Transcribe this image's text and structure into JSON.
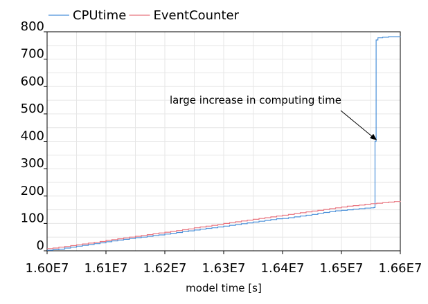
{
  "chart_data": {
    "type": "line",
    "title": "",
    "xlabel": "model time [s]",
    "ylabel": "",
    "xlim": [
      16000000,
      16600000
    ],
    "ylim": [
      0,
      800
    ],
    "x_ticks": [
      {
        "value": 16000000,
        "label": "1.60E7"
      },
      {
        "value": 16100000,
        "label": "1.61E7"
      },
      {
        "value": 16200000,
        "label": "1.62E7"
      },
      {
        "value": 16300000,
        "label": "1.63E7"
      },
      {
        "value": 16400000,
        "label": "1.64E7"
      },
      {
        "value": 16500000,
        "label": "1.65E7"
      },
      {
        "value": 16600000,
        "label": "1.66E7"
      }
    ],
    "y_ticks": [
      {
        "value": 0,
        "label": "0"
      },
      {
        "value": 100,
        "label": "100"
      },
      {
        "value": 200,
        "label": "200"
      },
      {
        "value": 300,
        "label": "300"
      },
      {
        "value": 400,
        "label": "400"
      },
      {
        "value": 500,
        "label": "500"
      },
      {
        "value": 600,
        "label": "600"
      },
      {
        "value": 700,
        "label": "700"
      },
      {
        "value": 800,
        "label": "800"
      }
    ],
    "grid": true,
    "legend_position": "top-left, above plot",
    "series": [
      {
        "name": "CPUtime",
        "color": "#4a90d9",
        "points": [
          [
            16000000,
            2
          ],
          [
            16010000,
            4
          ],
          [
            16020000,
            6
          ],
          [
            16030000,
            10
          ],
          [
            16040000,
            13
          ],
          [
            16050000,
            17
          ],
          [
            16060000,
            20
          ],
          [
            16070000,
            23
          ],
          [
            16080000,
            26
          ],
          [
            16090000,
            29
          ],
          [
            16100000,
            33
          ],
          [
            16110000,
            36
          ],
          [
            16120000,
            39
          ],
          [
            16130000,
            42
          ],
          [
            16140000,
            45
          ],
          [
            16150000,
            48
          ],
          [
            16160000,
            50
          ],
          [
            16170000,
            53
          ],
          [
            16180000,
            56
          ],
          [
            16190000,
            58
          ],
          [
            16200000,
            61
          ],
          [
            16210000,
            64
          ],
          [
            16220000,
            67
          ],
          [
            16230000,
            70
          ],
          [
            16240000,
            73
          ],
          [
            16250000,
            76
          ],
          [
            16260000,
            79
          ],
          [
            16270000,
            82
          ],
          [
            16280000,
            84
          ],
          [
            16290000,
            87
          ],
          [
            16300000,
            90
          ],
          [
            16310000,
            93
          ],
          [
            16320000,
            96
          ],
          [
            16330000,
            99
          ],
          [
            16340000,
            102
          ],
          [
            16350000,
            105
          ],
          [
            16360000,
            108
          ],
          [
            16370000,
            111
          ],
          [
            16380000,
            114
          ],
          [
            16390000,
            117
          ],
          [
            16400000,
            118
          ],
          [
            16410000,
            121
          ],
          [
            16420000,
            124
          ],
          [
            16430000,
            127
          ],
          [
            16440000,
            130
          ],
          [
            16450000,
            133
          ],
          [
            16460000,
            137
          ],
          [
            16470000,
            140
          ],
          [
            16480000,
            143
          ],
          [
            16490000,
            146
          ],
          [
            16500000,
            148
          ],
          [
            16510000,
            150
          ],
          [
            16520000,
            152
          ],
          [
            16530000,
            154
          ],
          [
            16540000,
            156
          ],
          [
            16550000,
            157
          ],
          [
            16555000,
            158
          ],
          [
            16557000,
            400
          ],
          [
            16559000,
            770
          ],
          [
            16562000,
            778
          ],
          [
            16570000,
            780
          ],
          [
            16580000,
            782
          ],
          [
            16590000,
            782
          ],
          [
            16600000,
            783
          ]
        ]
      },
      {
        "name": "EventCounter",
        "color": "#e8737e",
        "points": [
          [
            16000000,
            8
          ],
          [
            16010000,
            10
          ],
          [
            16020000,
            13
          ],
          [
            16030000,
            16
          ],
          [
            16040000,
            19
          ],
          [
            16050000,
            22
          ],
          [
            16060000,
            25
          ],
          [
            16070000,
            28
          ],
          [
            16080000,
            31
          ],
          [
            16090000,
            34
          ],
          [
            16100000,
            38
          ],
          [
            16110000,
            41
          ],
          [
            16120000,
            44
          ],
          [
            16130000,
            47
          ],
          [
            16140000,
            50
          ],
          [
            16150000,
            53
          ],
          [
            16160000,
            56
          ],
          [
            16170000,
            59
          ],
          [
            16180000,
            62
          ],
          [
            16190000,
            65
          ],
          [
            16200000,
            68
          ],
          [
            16210000,
            71
          ],
          [
            16220000,
            74
          ],
          [
            16230000,
            77
          ],
          [
            16240000,
            80
          ],
          [
            16250000,
            84
          ],
          [
            16260000,
            87
          ],
          [
            16270000,
            90
          ],
          [
            16280000,
            93
          ],
          [
            16290000,
            96
          ],
          [
            16300000,
            100
          ],
          [
            16310000,
            103
          ],
          [
            16320000,
            106
          ],
          [
            16330000,
            109
          ],
          [
            16340000,
            112
          ],
          [
            16350000,
            115
          ],
          [
            16360000,
            118
          ],
          [
            16370000,
            121
          ],
          [
            16380000,
            124
          ],
          [
            16390000,
            127
          ],
          [
            16400000,
            130
          ],
          [
            16410000,
            133
          ],
          [
            16420000,
            136
          ],
          [
            16430000,
            139
          ],
          [
            16440000,
            142
          ],
          [
            16450000,
            145
          ],
          [
            16460000,
            148
          ],
          [
            16470000,
            151
          ],
          [
            16480000,
            154
          ],
          [
            16490000,
            157
          ],
          [
            16500000,
            160
          ],
          [
            16510000,
            163
          ],
          [
            16520000,
            165
          ],
          [
            16530000,
            167
          ],
          [
            16540000,
            170
          ],
          [
            16550000,
            172
          ],
          [
            16560000,
            174
          ],
          [
            16570000,
            176
          ],
          [
            16580000,
            178
          ],
          [
            16590000,
            180
          ],
          [
            16600000,
            182
          ]
        ]
      }
    ],
    "annotation": {
      "text": "large increase in computing time",
      "arrow_to": [
        16557000,
        405
      ]
    }
  }
}
